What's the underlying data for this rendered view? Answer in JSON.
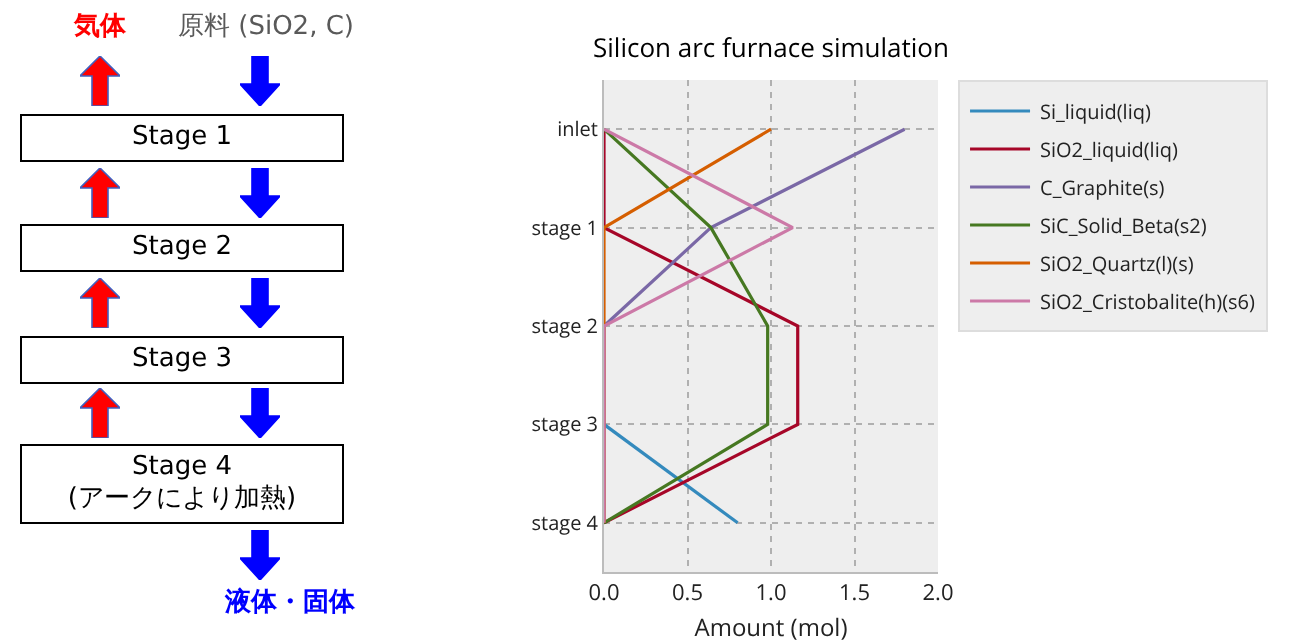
{
  "chart_data": [
    {
      "type": "other",
      "categories": [
        "Stage 1",
        "Stage 2",
        "Stage 3",
        "Stage 4\n(アークにより加熱)"
      ],
      "annotations": [
        "気体",
        "原料 (SiO2, C)",
        "液体・固体"
      ]
    },
    {
      "type": "line",
      "orientation": "horizontal",
      "title": "Silicon arc furnace simulation",
      "xlabel": "Amount (mol)",
      "categories": [
        "inlet",
        "stage 1",
        "stage 2",
        "stage 3",
        "stage 4"
      ],
      "xlim": [
        0,
        2
      ],
      "xticks": [
        {
          "value": 0,
          "label": "0.0"
        },
        {
          "value": 0.5,
          "label": "0.5"
        },
        {
          "value": 1,
          "label": "1.0"
        },
        {
          "value": 1.5,
          "label": "1.5"
        },
        {
          "value": 2,
          "label": "2.0"
        }
      ],
      "grid": true,
      "legend": "right",
      "line_style": "solid",
      "series": [
        {
          "name": "Si_liquid(liq)",
          "color": "#348abd",
          "values": [
            null,
            null,
            null,
            0,
            0.8
          ]
        },
        {
          "name": "SiO2_liquid(liq)",
          "color": "#a60628",
          "values": [
            0,
            0,
            1.16,
            1.16,
            0
          ]
        },
        {
          "name": "C_Graphite(s)",
          "color": "#7a68a6",
          "values": [
            1.8,
            0.64,
            0,
            0,
            0
          ]
        },
        {
          "name": "SiC_Solid_Beta(s2)",
          "color": "#467821",
          "values": [
            0,
            0.64,
            0.98,
            0.98,
            0
          ]
        },
        {
          "name": "SiO2_Quartz(l)(s)",
          "color": "#d55e00",
          "values": [
            1,
            0,
            0,
            0,
            0
          ]
        },
        {
          "name": "SiO2_Cristobalite(h)(s6)",
          "color": "#cc79a7",
          "values": [
            0,
            1.13,
            0,
            0,
            0
          ]
        }
      ]
    }
  ]
}
